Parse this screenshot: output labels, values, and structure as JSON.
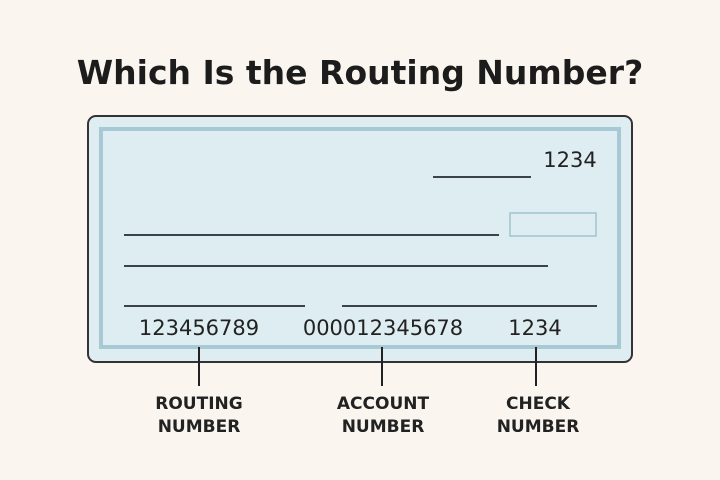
{
  "title": "Which Is the Routing Number?",
  "check": {
    "check_number_top": "1234",
    "routing_number": "123456789",
    "account_number": "000012345678",
    "check_number_bottom": "1234"
  },
  "labels": {
    "routing": [
      "ROUTING",
      "NUMBER"
    ],
    "account": [
      "ACCOUNT",
      "NUMBER"
    ],
    "check": [
      "CHECK",
      "NUMBER"
    ]
  },
  "colors": {
    "background": "#faf6ef",
    "check_fill": "#deedf1",
    "check_inner_border": "#a8c9d3",
    "ink": "#222222"
  }
}
